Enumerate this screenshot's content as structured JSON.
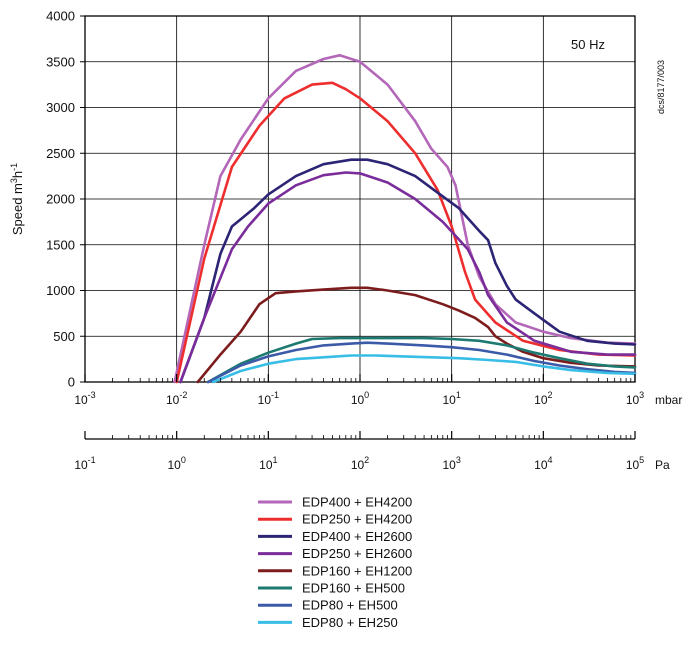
{
  "chart_data": {
    "type": "line",
    "title": "",
    "annotation": "50 Hz",
    "side_label": "dcs/8177/003",
    "ylabel": "Speed m³h⁻¹",
    "ylabel_parts": {
      "text": "Speed  m",
      "sup1": "3",
      "mid": "h",
      "sup2": "-1"
    },
    "ylim": [
      0,
      4000
    ],
    "yticks": [
      0,
      500,
      1000,
      1500,
      2000,
      2500,
      3000,
      3500,
      4000
    ],
    "x_scale": "log",
    "xlim_exp": [
      -3,
      3
    ],
    "x_unit": "mbar",
    "x2_unit": "Pa",
    "x_tick_exps": [
      -3,
      -2,
      -1,
      0,
      1,
      2,
      3
    ],
    "x2_tick_exps": [
      -1,
      0,
      1,
      2,
      3,
      4,
      5
    ],
    "grid": true,
    "legend_position": "bottom",
    "series": [
      {
        "name": "EDP400 + EH4200",
        "color": "#b467b8",
        "points": [
          [
            0.0095,
            0
          ],
          [
            0.02,
            1500
          ],
          [
            0.03,
            2250
          ],
          [
            0.05,
            2650
          ],
          [
            0.1,
            3100
          ],
          [
            0.2,
            3400
          ],
          [
            0.4,
            3530
          ],
          [
            0.6,
            3570
          ],
          [
            1.0,
            3500
          ],
          [
            2,
            3250
          ],
          [
            4,
            2850
          ],
          [
            6,
            2550
          ],
          [
            9,
            2350
          ],
          [
            11,
            2150
          ],
          [
            15,
            1500
          ],
          [
            20,
            1150
          ],
          [
            30,
            850
          ],
          [
            50,
            650
          ],
          [
            100,
            550
          ],
          [
            200,
            480
          ],
          [
            500,
            430
          ],
          [
            1000,
            420
          ]
        ]
      },
      {
        "name": "EDP250 + EH4200",
        "color": "#ee2e2e",
        "points": [
          [
            0.01,
            0
          ],
          [
            0.02,
            1350
          ],
          [
            0.04,
            2350
          ],
          [
            0.08,
            2800
          ],
          [
            0.15,
            3100
          ],
          [
            0.3,
            3250
          ],
          [
            0.5,
            3270
          ],
          [
            0.7,
            3200
          ],
          [
            1.0,
            3100
          ],
          [
            2,
            2850
          ],
          [
            4,
            2500
          ],
          [
            7,
            2100
          ],
          [
            10,
            1700
          ],
          [
            14,
            1200
          ],
          [
            18,
            900
          ],
          [
            30,
            650
          ],
          [
            60,
            450
          ],
          [
            150,
            350
          ],
          [
            400,
            300
          ],
          [
            1000,
            290
          ]
        ]
      },
      {
        "name": "EDP400 + EH2600",
        "color": "#2c2474",
        "points": [
          [
            0.011,
            0
          ],
          [
            0.02,
            700
          ],
          [
            0.03,
            1400
          ],
          [
            0.04,
            1700
          ],
          [
            0.07,
            1900
          ],
          [
            0.1,
            2050
          ],
          [
            0.2,
            2250
          ],
          [
            0.4,
            2380
          ],
          [
            0.8,
            2430
          ],
          [
            1.2,
            2430
          ],
          [
            2,
            2380
          ],
          [
            4,
            2250
          ],
          [
            7,
            2070
          ],
          [
            12,
            1900
          ],
          [
            20,
            1650
          ],
          [
            25,
            1550
          ],
          [
            30,
            1300
          ],
          [
            40,
            1050
          ],
          [
            50,
            900
          ],
          [
            80,
            750
          ],
          [
            150,
            550
          ],
          [
            300,
            450
          ],
          [
            600,
            420
          ],
          [
            1000,
            410
          ]
        ]
      },
      {
        "name": "EDP250 + EH2600",
        "color": "#7a2d9a",
        "points": [
          [
            0.011,
            0
          ],
          [
            0.02,
            700
          ],
          [
            0.04,
            1450
          ],
          [
            0.06,
            1700
          ],
          [
            0.1,
            1950
          ],
          [
            0.2,
            2150
          ],
          [
            0.4,
            2260
          ],
          [
            0.7,
            2290
          ],
          [
            1.0,
            2280
          ],
          [
            2,
            2180
          ],
          [
            4,
            2000
          ],
          [
            8,
            1750
          ],
          [
            15,
            1450
          ],
          [
            20,
            1200
          ],
          [
            25,
            950
          ],
          [
            40,
            650
          ],
          [
            80,
            450
          ],
          [
            200,
            330
          ],
          [
            500,
            300
          ],
          [
            1000,
            300
          ]
        ]
      },
      {
        "name": "EDP160 + EH1200",
        "color": "#7c1c1c",
        "points": [
          [
            0.017,
            0
          ],
          [
            0.03,
            300
          ],
          [
            0.05,
            550
          ],
          [
            0.08,
            850
          ],
          [
            0.12,
            970
          ],
          [
            0.2,
            990
          ],
          [
            0.4,
            1010
          ],
          [
            0.8,
            1030
          ],
          [
            1.2,
            1030
          ],
          [
            2,
            1000
          ],
          [
            4,
            950
          ],
          [
            8,
            850
          ],
          [
            12,
            780
          ],
          [
            18,
            700
          ],
          [
            25,
            600
          ],
          [
            30,
            500
          ],
          [
            40,
            420
          ],
          [
            60,
            330
          ],
          [
            100,
            260
          ],
          [
            200,
            210
          ],
          [
            400,
            180
          ],
          [
            1000,
            170
          ]
        ]
      },
      {
        "name": "EDP160 + EH500",
        "color": "#1c7a70",
        "points": [
          [
            0.022,
            0
          ],
          [
            0.05,
            200
          ],
          [
            0.1,
            320
          ],
          [
            0.2,
            420
          ],
          [
            0.3,
            470
          ],
          [
            0.6,
            480
          ],
          [
            1.0,
            480
          ],
          [
            2,
            480
          ],
          [
            5,
            480
          ],
          [
            10,
            470
          ],
          [
            20,
            450
          ],
          [
            40,
            400
          ],
          [
            80,
            320
          ],
          [
            150,
            260
          ],
          [
            300,
            200
          ],
          [
            600,
            170
          ],
          [
            1000,
            160
          ]
        ]
      },
      {
        "name": "EDP80 + EH500",
        "color": "#3b5aa8",
        "points": [
          [
            0.022,
            0
          ],
          [
            0.05,
            180
          ],
          [
            0.1,
            280
          ],
          [
            0.2,
            350
          ],
          [
            0.4,
            400
          ],
          [
            0.8,
            420
          ],
          [
            1.2,
            430
          ],
          [
            2,
            420
          ],
          [
            5,
            400
          ],
          [
            10,
            380
          ],
          [
            20,
            350
          ],
          [
            40,
            300
          ],
          [
            80,
            230
          ],
          [
            150,
            180
          ],
          [
            300,
            140
          ],
          [
            600,
            110
          ],
          [
            1000,
            100
          ]
        ]
      },
      {
        "name": "EDP80 + EH250",
        "color": "#38bde6",
        "points": [
          [
            0.025,
            0
          ],
          [
            0.05,
            120
          ],
          [
            0.1,
            200
          ],
          [
            0.2,
            250
          ],
          [
            0.4,
            270
          ],
          [
            0.8,
            290
          ],
          [
            1.5,
            290
          ],
          [
            3,
            280
          ],
          [
            6,
            270
          ],
          [
            12,
            260
          ],
          [
            25,
            240
          ],
          [
            50,
            220
          ],
          [
            100,
            170
          ],
          [
            200,
            130
          ],
          [
            500,
            100
          ],
          [
            1000,
            90
          ]
        ]
      }
    ]
  }
}
